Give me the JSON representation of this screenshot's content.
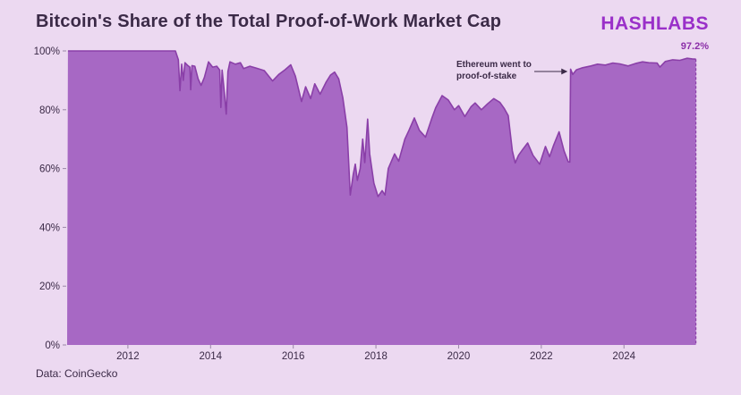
{
  "header": {
    "logo": "HASHLABS"
  },
  "footer": {
    "source": "Data: CoinGecko"
  },
  "chart_data": {
    "type": "area",
    "title": "Bitcoin's Share of the Total Proof-of-Work Market Cap",
    "legend": "none",
    "grid": "off",
    "colors": {
      "background": "#ecd9f1",
      "area_fill": "#a768c4",
      "line": "#8a3fa8",
      "text_dark": "#3b2a47",
      "tick": "#9a87a6",
      "brand": "#9a30c9",
      "end_label": "#8b2fa8"
    },
    "x_axis": {
      "range": [
        2010.53,
        2025.9
      ],
      "ticks": [
        {
          "value": 2012,
          "label": "2012"
        },
        {
          "value": 2014,
          "label": "2014"
        },
        {
          "value": 2016,
          "label": "2016"
        },
        {
          "value": 2018,
          "label": "2018"
        },
        {
          "value": 2020,
          "label": "2020"
        },
        {
          "value": 2022,
          "label": "2022"
        },
        {
          "value": 2024,
          "label": "2024"
        }
      ]
    },
    "y_axis": {
      "range": [
        0,
        100
      ],
      "ticks": [
        {
          "value": 0,
          "label": "0%"
        },
        {
          "value": 20,
          "label": "20%"
        },
        {
          "value": 40,
          "label": "40%"
        },
        {
          "value": 60,
          "label": "60%"
        },
        {
          "value": 80,
          "label": "80%"
        },
        {
          "value": 100,
          "label": "100%"
        }
      ]
    },
    "annotation": {
      "line1": "Ethereum went to",
      "line2": "proof-of-stake",
      "arrow_from_year": 2021.83,
      "arrow_to_year": 2022.55,
      "arrow_y_pct": 93
    },
    "end_label": "97.2%",
    "end_value": 97.2,
    "series": [
      {
        "name": "Bitcoin share of total PoW market cap (%)",
        "points": [
          [
            2010.55,
            100
          ],
          [
            2011.2,
            100
          ],
          [
            2011.8,
            100
          ],
          [
            2012.4,
            100
          ],
          [
            2012.9,
            100
          ],
          [
            2013.15,
            100
          ],
          [
            2013.22,
            97
          ],
          [
            2013.26,
            86.5
          ],
          [
            2013.3,
            95.5
          ],
          [
            2013.34,
            90
          ],
          [
            2013.38,
            96
          ],
          [
            2013.45,
            95
          ],
          [
            2013.5,
            94.5
          ],
          [
            2013.52,
            86.8
          ],
          [
            2013.55,
            95
          ],
          [
            2013.62,
            94.8
          ],
          [
            2013.7,
            90.5
          ],
          [
            2013.77,
            88.3
          ],
          [
            2013.85,
            91
          ],
          [
            2013.95,
            96.3
          ],
          [
            2014.05,
            94.5
          ],
          [
            2014.15,
            94.8
          ],
          [
            2014.22,
            93.5
          ],
          [
            2014.25,
            80.8
          ],
          [
            2014.28,
            93.5
          ],
          [
            2014.34,
            85
          ],
          [
            2014.38,
            78.5
          ],
          [
            2014.42,
            93
          ],
          [
            2014.47,
            96.3
          ],
          [
            2014.6,
            95.5
          ],
          [
            2014.72,
            96
          ],
          [
            2014.8,
            94
          ],
          [
            2014.95,
            94.8
          ],
          [
            2015.1,
            94.2
          ],
          [
            2015.3,
            93.3
          ],
          [
            2015.5,
            89.8
          ],
          [
            2015.65,
            92
          ],
          [
            2015.8,
            93.6
          ],
          [
            2015.94,
            95.3
          ],
          [
            2016.05,
            91.5
          ],
          [
            2016.2,
            82.8
          ],
          [
            2016.3,
            87.8
          ],
          [
            2016.42,
            83.8
          ],
          [
            2016.52,
            88.8
          ],
          [
            2016.65,
            85.3
          ],
          [
            2016.8,
            89.5
          ],
          [
            2016.9,
            91.8
          ],
          [
            2017.0,
            92.8
          ],
          [
            2017.1,
            90.5
          ],
          [
            2017.2,
            84
          ],
          [
            2017.3,
            74
          ],
          [
            2017.38,
            51
          ],
          [
            2017.45,
            58
          ],
          [
            2017.5,
            61.5
          ],
          [
            2017.55,
            56
          ],
          [
            2017.62,
            60
          ],
          [
            2017.68,
            70
          ],
          [
            2017.73,
            62
          ],
          [
            2017.8,
            76.8
          ],
          [
            2017.85,
            65
          ],
          [
            2017.95,
            55
          ],
          [
            2018.05,
            50.5
          ],
          [
            2018.15,
            52.5
          ],
          [
            2018.22,
            51
          ],
          [
            2018.3,
            60
          ],
          [
            2018.45,
            65
          ],
          [
            2018.55,
            62.5
          ],
          [
            2018.7,
            70
          ],
          [
            2018.8,
            73
          ],
          [
            2018.93,
            77.2
          ],
          [
            2019.05,
            73
          ],
          [
            2019.2,
            70.7
          ],
          [
            2019.35,
            77
          ],
          [
            2019.45,
            80.8
          ],
          [
            2019.6,
            84.8
          ],
          [
            2019.75,
            83.3
          ],
          [
            2019.9,
            80
          ],
          [
            2020.0,
            81.4
          ],
          [
            2020.15,
            77.7
          ],
          [
            2020.3,
            81
          ],
          [
            2020.4,
            82.3
          ],
          [
            2020.55,
            80
          ],
          [
            2020.7,
            82
          ],
          [
            2020.85,
            83.8
          ],
          [
            2021.0,
            82.5
          ],
          [
            2021.1,
            80.5
          ],
          [
            2021.2,
            78
          ],
          [
            2021.3,
            66
          ],
          [
            2021.37,
            61.9
          ],
          [
            2021.45,
            64.5
          ],
          [
            2021.55,
            66.5
          ],
          [
            2021.67,
            68.7
          ],
          [
            2021.8,
            64.5
          ],
          [
            2021.96,
            61.5
          ],
          [
            2022.1,
            67.5
          ],
          [
            2022.2,
            64
          ],
          [
            2022.3,
            68
          ],
          [
            2022.43,
            72.5
          ],
          [
            2022.55,
            66
          ],
          [
            2022.65,
            62.3
          ],
          [
            2022.69,
            62.2
          ],
          [
            2022.71,
            93.8
          ],
          [
            2022.76,
            92
          ],
          [
            2022.85,
            93.6
          ],
          [
            2023.0,
            94.3
          ],
          [
            2023.2,
            94.9
          ],
          [
            2023.36,
            95.5
          ],
          [
            2023.55,
            95.2
          ],
          [
            2023.73,
            95.9
          ],
          [
            2023.9,
            95.6
          ],
          [
            2024.1,
            94.9
          ],
          [
            2024.3,
            95.8
          ],
          [
            2024.45,
            96.3
          ],
          [
            2024.6,
            96
          ],
          [
            2024.8,
            95.9
          ],
          [
            2024.87,
            94.5
          ],
          [
            2025.0,
            96.4
          ],
          [
            2025.18,
            97
          ],
          [
            2025.35,
            96.8
          ],
          [
            2025.53,
            97.5
          ],
          [
            2025.65,
            97.3
          ],
          [
            2025.74,
            97.2
          ]
        ]
      }
    ]
  }
}
